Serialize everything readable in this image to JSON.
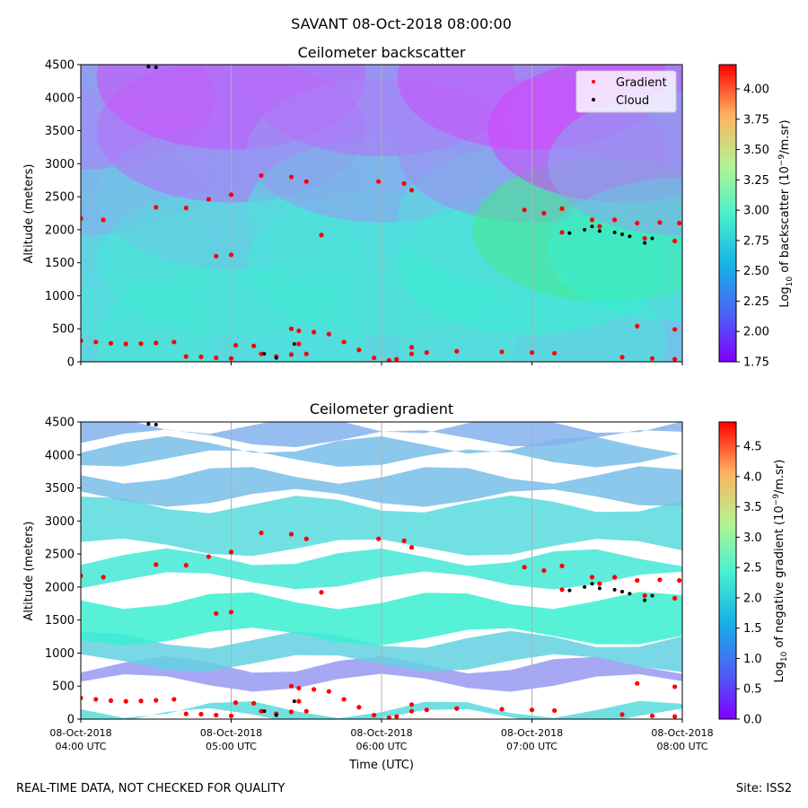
{
  "suptitle": "SAVANT 08-Oct-2018 08:00:00",
  "footer": {
    "left": "REAL-TIME DATA, NOT CHECKED FOR QUALITY",
    "right": "Site: ISS2"
  },
  "colors": {
    "gradient_marker": "#ff0000",
    "cloud_marker": "#000000",
    "colormap": "rainbow",
    "gridline": "#b0b0b0",
    "missing": "#ffffff"
  },
  "chart_data": [
    {
      "type": "heatmap",
      "title": "Ceilometer backscatter",
      "xlabel": "",
      "ylabel": "Altitude (meters)",
      "ylim": [
        0,
        4500
      ],
      "yticks": [
        0,
        500,
        1000,
        1500,
        2000,
        2500,
        3000,
        3500,
        4000,
        4500
      ],
      "xlim": [
        4.0,
        8.0
      ],
      "xticks": [
        4,
        5,
        6,
        7,
        8
      ],
      "grid": "vertical",
      "colorbar": {
        "label_prefix": "Log",
        "label_sub": "10",
        "label_main": " of backscatter (10",
        "label_sup": "−9",
        "label_suffix": "/m.sr)",
        "range": [
          1.75,
          4.2
        ],
        "ticks": [
          "1.75",
          "2.00",
          "2.25",
          "2.50",
          "2.75",
          "3.00",
          "3.25",
          "3.50",
          "3.75",
          "4.00"
        ]
      },
      "legend": {
        "placement": "upper-right",
        "entries": [
          {
            "name": "Gradient",
            "color": "#ff0000"
          },
          {
            "name": "Cloud",
            "color": "#000000"
          }
        ]
      },
      "field": {
        "columns": [
          "hour",
          "altitude_m",
          "log10_backscatter"
        ],
        "points": [
          [
            4.0,
            300,
            2.6
          ],
          [
            4.0,
            1500,
            2.6
          ],
          [
            4.0,
            2200,
            2.5
          ],
          [
            4.0,
            3000,
            2.3
          ],
          [
            4.0,
            4000,
            2.15
          ],
          [
            5.0,
            300,
            2.65
          ],
          [
            5.0,
            1500,
            2.65
          ],
          [
            5.0,
            2500,
            2.45
          ],
          [
            5.0,
            3500,
            2.1
          ],
          [
            5.0,
            4300,
            2.0
          ],
          [
            6.0,
            300,
            2.6
          ],
          [
            6.0,
            1500,
            2.65
          ],
          [
            6.0,
            2300,
            2.6
          ],
          [
            6.0,
            3200,
            2.25
          ],
          [
            6.0,
            4200,
            2.1
          ],
          [
            7.0,
            300,
            2.6
          ],
          [
            7.0,
            1500,
            2.7
          ],
          [
            7.0,
            2200,
            2.55
          ],
          [
            7.0,
            3200,
            2.2
          ],
          [
            7.0,
            4300,
            2.0
          ],
          [
            7.5,
            2000,
            3.3
          ],
          [
            7.6,
            3500,
            1.95
          ],
          [
            8.0,
            1700,
            2.7
          ],
          [
            8.0,
            3000,
            2.3
          ]
        ]
      },
      "gradient_points": [
        [
          4.0,
          320
        ],
        [
          4.1,
          300
        ],
        [
          4.2,
          280
        ],
        [
          4.3,
          270
        ],
        [
          4.4,
          275
        ],
        [
          4.5,
          285
        ],
        [
          4.62,
          300
        ],
        [
          4.7,
          80
        ],
        [
          4.8,
          75
        ],
        [
          4.9,
          60
        ],
        [
          5.0,
          50
        ],
        [
          5.03,
          250
        ],
        [
          5.15,
          240
        ],
        [
          5.2,
          120
        ],
        [
          5.3,
          80
        ],
        [
          5.4,
          110
        ],
        [
          5.5,
          120
        ],
        [
          5.45,
          470
        ],
        [
          5.55,
          450
        ],
        [
          5.65,
          420
        ],
        [
          5.75,
          300
        ],
        [
          5.85,
          180
        ],
        [
          5.95,
          60
        ],
        [
          6.05,
          20
        ],
        [
          6.1,
          40
        ],
        [
          6.2,
          120
        ],
        [
          6.3,
          140
        ],
        [
          6.5,
          160
        ],
        [
          6.8,
          150
        ],
        [
          7.0,
          140
        ],
        [
          7.15,
          130
        ],
        [
          7.6,
          70
        ],
        [
          7.8,
          50
        ],
        [
          7.95,
          40
        ],
        [
          7.7,
          540
        ],
        [
          7.95,
          490
        ],
        [
          4.0,
          2170
        ],
        [
          4.15,
          2150
        ],
        [
          4.5,
          2340
        ],
        [
          4.7,
          2330
        ],
        [
          4.85,
          2460
        ],
        [
          5.0,
          2530
        ],
        [
          4.9,
          1600
        ],
        [
          5.0,
          1620
        ],
        [
          5.2,
          2820
        ],
        [
          5.4,
          2800
        ],
        [
          5.5,
          2730
        ],
        [
          5.6,
          1920
        ],
        [
          5.98,
          2730
        ],
        [
          6.15,
          2700
        ],
        [
          6.2,
          2600
        ],
        [
          6.2,
          220
        ],
        [
          6.95,
          2300
        ],
        [
          7.08,
          2250
        ],
        [
          7.2,
          2320
        ],
        [
          7.4,
          2150
        ],
        [
          7.55,
          2150
        ],
        [
          7.7,
          2100
        ],
        [
          7.85,
          2110
        ],
        [
          7.98,
          2100
        ],
        [
          7.2,
          1960
        ],
        [
          7.45,
          2050
        ],
        [
          7.75,
          1870
        ],
        [
          7.95,
          1830
        ],
        [
          5.4,
          500
        ],
        [
          5.45,
          270
        ]
      ],
      "cloud_points": [
        [
          4.45,
          4470
        ],
        [
          4.5,
          4460
        ],
        [
          5.22,
          120
        ],
        [
          5.42,
          270
        ],
        [
          5.3,
          60
        ],
        [
          7.25,
          1950
        ],
        [
          7.35,
          2000
        ],
        [
          7.4,
          2050
        ],
        [
          7.45,
          1980
        ],
        [
          7.55,
          1960
        ],
        [
          7.6,
          1930
        ],
        [
          7.65,
          1900
        ],
        [
          7.75,
          1800
        ],
        [
          7.8,
          1870
        ]
      ]
    },
    {
      "type": "heatmap",
      "title": "Ceilometer gradient",
      "xlabel": "Time (UTC)",
      "ylabel": "Altitude (meters)",
      "ylim": [
        0,
        4500
      ],
      "yticks": [
        0,
        500,
        1000,
        1500,
        2000,
        2500,
        3000,
        3500,
        4000,
        4500
      ],
      "xlim": [
        4.0,
        8.0
      ],
      "xticks": [
        4,
        5,
        6,
        7,
        8
      ],
      "xtick_labels": [
        [
          "08-Oct-2018",
          "04:00 UTC"
        ],
        [
          "08-Oct-2018",
          "05:00 UTC"
        ],
        [
          "08-Oct-2018",
          "06:00 UTC"
        ],
        [
          "08-Oct-2018",
          "07:00 UTC"
        ],
        [
          "08-Oct-2018",
          "08:00 UTC"
        ]
      ],
      "grid": "vertical",
      "colorbar": {
        "label_prefix": "Log",
        "label_sub": "10",
        "label_main": " of negative gradient (10",
        "label_sup": "−9",
        "label_suffix": "/m.sr)",
        "range": [
          0.0,
          4.9
        ],
        "ticks": [
          "0.0",
          "0.5",
          "1.0",
          "1.5",
          "2.0",
          "2.5",
          "3.0",
          "3.5",
          "4.0",
          "4.5"
        ]
      },
      "bands": {
        "columns": [
          "altitude_low_m",
          "altitude_high_m",
          "log10_gradient"
        ],
        "rows": [
          [
            30,
            150,
            1.6
          ],
          [
            550,
            820,
            1.0
          ],
          [
            850,
            1200,
            1.5
          ],
          [
            1250,
            1800,
            1.9
          ],
          [
            2100,
            2450,
            1.8
          ],
          [
            2600,
            3250,
            1.6
          ],
          [
            3350,
            3700,
            1.3
          ],
          [
            3950,
            4150,
            1.3
          ],
          [
            4250,
            4450,
            1.2
          ]
        ]
      },
      "gradient_points": [
        [
          4.0,
          320
        ],
        [
          4.1,
          300
        ],
        [
          4.2,
          280
        ],
        [
          4.3,
          270
        ],
        [
          4.4,
          275
        ],
        [
          4.5,
          285
        ],
        [
          4.62,
          300
        ],
        [
          4.7,
          80
        ],
        [
          4.8,
          75
        ],
        [
          4.9,
          60
        ],
        [
          5.0,
          50
        ],
        [
          5.03,
          250
        ],
        [
          5.15,
          240
        ],
        [
          5.2,
          120
        ],
        [
          5.3,
          80
        ],
        [
          5.4,
          110
        ],
        [
          5.5,
          120
        ],
        [
          5.45,
          470
        ],
        [
          5.55,
          450
        ],
        [
          5.65,
          420
        ],
        [
          5.75,
          300
        ],
        [
          5.85,
          180
        ],
        [
          5.95,
          60
        ],
        [
          6.05,
          20
        ],
        [
          6.1,
          40
        ],
        [
          6.2,
          120
        ],
        [
          6.3,
          140
        ],
        [
          6.5,
          160
        ],
        [
          6.8,
          150
        ],
        [
          7.0,
          140
        ],
        [
          7.15,
          130
        ],
        [
          7.6,
          70
        ],
        [
          7.8,
          50
        ],
        [
          7.95,
          40
        ],
        [
          7.7,
          540
        ],
        [
          7.95,
          490
        ],
        [
          4.0,
          2170
        ],
        [
          4.15,
          2150
        ],
        [
          4.5,
          2340
        ],
        [
          4.7,
          2330
        ],
        [
          4.85,
          2460
        ],
        [
          5.0,
          2530
        ],
        [
          4.9,
          1600
        ],
        [
          5.0,
          1620
        ],
        [
          5.2,
          2820
        ],
        [
          5.4,
          2800
        ],
        [
          5.5,
          2730
        ],
        [
          5.6,
          1920
        ],
        [
          5.98,
          2730
        ],
        [
          6.15,
          2700
        ],
        [
          6.2,
          2600
        ],
        [
          6.2,
          220
        ],
        [
          6.95,
          2300
        ],
        [
          7.08,
          2250
        ],
        [
          7.2,
          2320
        ],
        [
          7.4,
          2150
        ],
        [
          7.55,
          2150
        ],
        [
          7.7,
          2100
        ],
        [
          7.85,
          2110
        ],
        [
          7.98,
          2100
        ],
        [
          7.2,
          1960
        ],
        [
          7.45,
          2050
        ],
        [
          7.75,
          1870
        ],
        [
          7.95,
          1830
        ],
        [
          5.4,
          500
        ],
        [
          5.45,
          270
        ]
      ],
      "cloud_points": [
        [
          4.45,
          4470
        ],
        [
          4.5,
          4460
        ],
        [
          5.22,
          120
        ],
        [
          5.42,
          270
        ],
        [
          5.3,
          60
        ],
        [
          7.25,
          1950
        ],
        [
          7.35,
          2000
        ],
        [
          7.4,
          2050
        ],
        [
          7.45,
          1980
        ],
        [
          7.55,
          1960
        ],
        [
          7.6,
          1930
        ],
        [
          7.65,
          1900
        ],
        [
          7.75,
          1800
        ],
        [
          7.8,
          1870
        ]
      ]
    }
  ]
}
